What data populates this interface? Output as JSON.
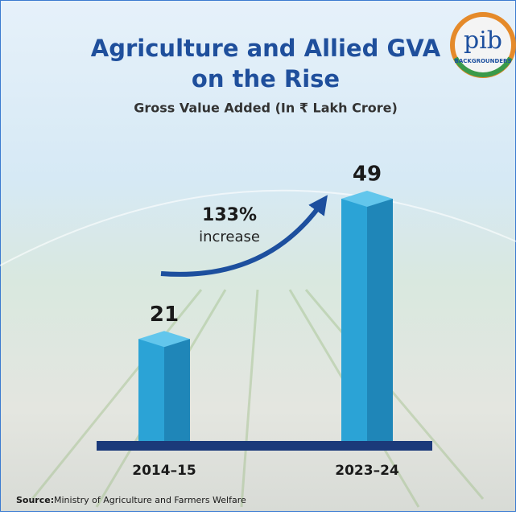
{
  "chart_data": {
    "type": "bar3d",
    "title": [
      "Agriculture and Allied GVA",
      "on the Rise"
    ],
    "subtitle": "Gross Value Added (In ₹ Lakh Crore)",
    "categories": [
      "2014–15",
      "2023–24"
    ],
    "values": [
      21,
      49
    ],
    "color": "#2ba3d6",
    "annotations": [
      "133%",
      "increase"
    ],
    "source": {
      "label": "Source:",
      "text": "Ministry of Agriculture and Farmers Welfare"
    },
    "logo": {
      "text": "pib",
      "subtext": "BACKGROUNDERS"
    }
  }
}
